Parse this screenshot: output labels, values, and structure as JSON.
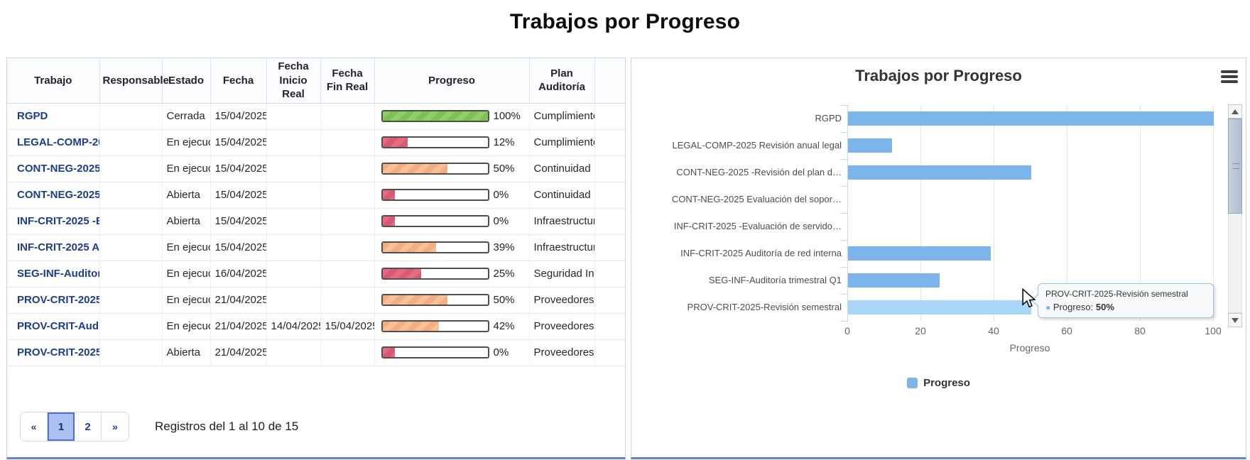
{
  "page_title": "Trabajos por Progreso",
  "table": {
    "columns": [
      "Trabajo",
      "Responsable",
      "Estado",
      "Fecha",
      "Fecha Inicio Real",
      "Fecha Fin Real",
      "Progreso",
      "Plan Auditoría"
    ],
    "rows": [
      {
        "trabajo": "RGPD",
        "responsable": "",
        "estado": "Cerrada",
        "fecha": "15/04/2025",
        "inicio_real": "",
        "fin_real": "",
        "progreso": 100,
        "color": "green",
        "plan": "Cumplimiento"
      },
      {
        "trabajo": "LEGAL-COMP-2025 Revisión anual legal",
        "responsable": "",
        "estado": "En ejecución",
        "fecha": "15/04/2025",
        "inicio_real": "",
        "fin_real": "",
        "progreso": 12,
        "color": "red",
        "plan": "Cumplimiento"
      },
      {
        "trabajo": "CONT-NEG-2025 -Revisión del plan d…",
        "responsable": "",
        "estado": "En ejecución",
        "fecha": "15/04/2025",
        "inicio_real": "",
        "fin_real": "",
        "progreso": 50,
        "color": "orange",
        "plan": "Continuidad"
      },
      {
        "trabajo": "CONT-NEG-2025 Evaluación del sopor…",
        "responsable": "",
        "estado": "Abierta",
        "fecha": "15/04/2025",
        "inicio_real": "",
        "fin_real": "",
        "progreso": 0,
        "color": "red",
        "plan": "Continuidad"
      },
      {
        "trabajo": "INF-CRIT-2025 -Evaluación de servido…",
        "responsable": "",
        "estado": "Abierta",
        "fecha": "15/04/2025",
        "inicio_real": "",
        "fin_real": "",
        "progreso": 0,
        "color": "red",
        "plan": "Infraestructura"
      },
      {
        "trabajo": "INF-CRIT-2025 Auditoría de red interna",
        "responsable": "",
        "estado": "En ejecución",
        "fecha": "15/04/2025",
        "inicio_real": "",
        "fin_real": "",
        "progreso": 39,
        "color": "orange",
        "plan": "Infraestructura"
      },
      {
        "trabajo": "SEG-INF-Auditoría trimestral Q1",
        "responsable": "",
        "estado": "En ejecución",
        "fecha": "16/04/2025",
        "inicio_real": "",
        "fin_real": "",
        "progreso": 25,
        "color": "red",
        "plan": "Seguridad Informática"
      },
      {
        "trabajo": "PROV-CRIT-2025-Revisión semestral",
        "responsable": "",
        "estado": "En ejecución",
        "fecha": "21/04/2025",
        "inicio_real": "",
        "fin_real": "",
        "progreso": 50,
        "color": "orange",
        "plan": "Proveedores"
      },
      {
        "trabajo": "PROV-CRIT-Audit",
        "responsable": "",
        "estado": "En ejecución",
        "fecha": "21/04/2025",
        "inicio_real": "14/04/2025",
        "fin_real": "15/04/2025",
        "progreso": 42,
        "color": "orange",
        "plan": "Proveedores"
      },
      {
        "trabajo": "PROV-CRIT-2025-",
        "responsable": "",
        "estado": "Abierta",
        "fecha": "21/04/2025",
        "inicio_real": "",
        "fin_real": "",
        "progreso": 0,
        "color": "red",
        "plan": "Proveedores"
      }
    ]
  },
  "pagination": {
    "first": "«",
    "pages": [
      "1",
      "2"
    ],
    "active": "1",
    "last": "»",
    "summary": "Registros del 1 al 10 de 15"
  },
  "chart_data": {
    "type": "bar",
    "title": "Trabajos por Progreso",
    "categories": [
      "RGPD",
      "LEGAL-COMP-2025 Revisión anual legal",
      "CONT-NEG-2025 -Revisión del plan d…",
      "CONT-NEG-2025 Evaluación del sopor…",
      "INF-CRIT-2025 -Evaluación de servido…",
      "INF-CRIT-2025 Auditoría de red interna",
      "SEG-INF-Auditoría trimestral Q1",
      "PROV-CRIT-2025-Revisión semestral"
    ],
    "series": [
      {
        "name": "Progreso",
        "values": [
          100,
          12,
          50,
          0,
          0,
          39,
          25,
          50
        ]
      }
    ],
    "xlabel": "Progreso",
    "xlim": [
      0,
      100
    ],
    "ticks": [
      0,
      20,
      40,
      60,
      80,
      100
    ],
    "legend_position": "bottom",
    "hovered_index": 7
  },
  "tooltip": {
    "title": "PROV-CRIT-2025-Revisión semestral",
    "dot": "●",
    "series": "Progreso:",
    "value": "50%"
  },
  "colors": {
    "bar": "#7cb5ec",
    "bar_hover": "#a9d6f8",
    "link": "#1b3d8f",
    "progress_green": "#8ed066",
    "progress_red": "#e66a80",
    "progress_orange": "#f3ad7e",
    "panel_bottom_border": "#5f86d7",
    "pager_active_bg": "#abc1f1"
  }
}
